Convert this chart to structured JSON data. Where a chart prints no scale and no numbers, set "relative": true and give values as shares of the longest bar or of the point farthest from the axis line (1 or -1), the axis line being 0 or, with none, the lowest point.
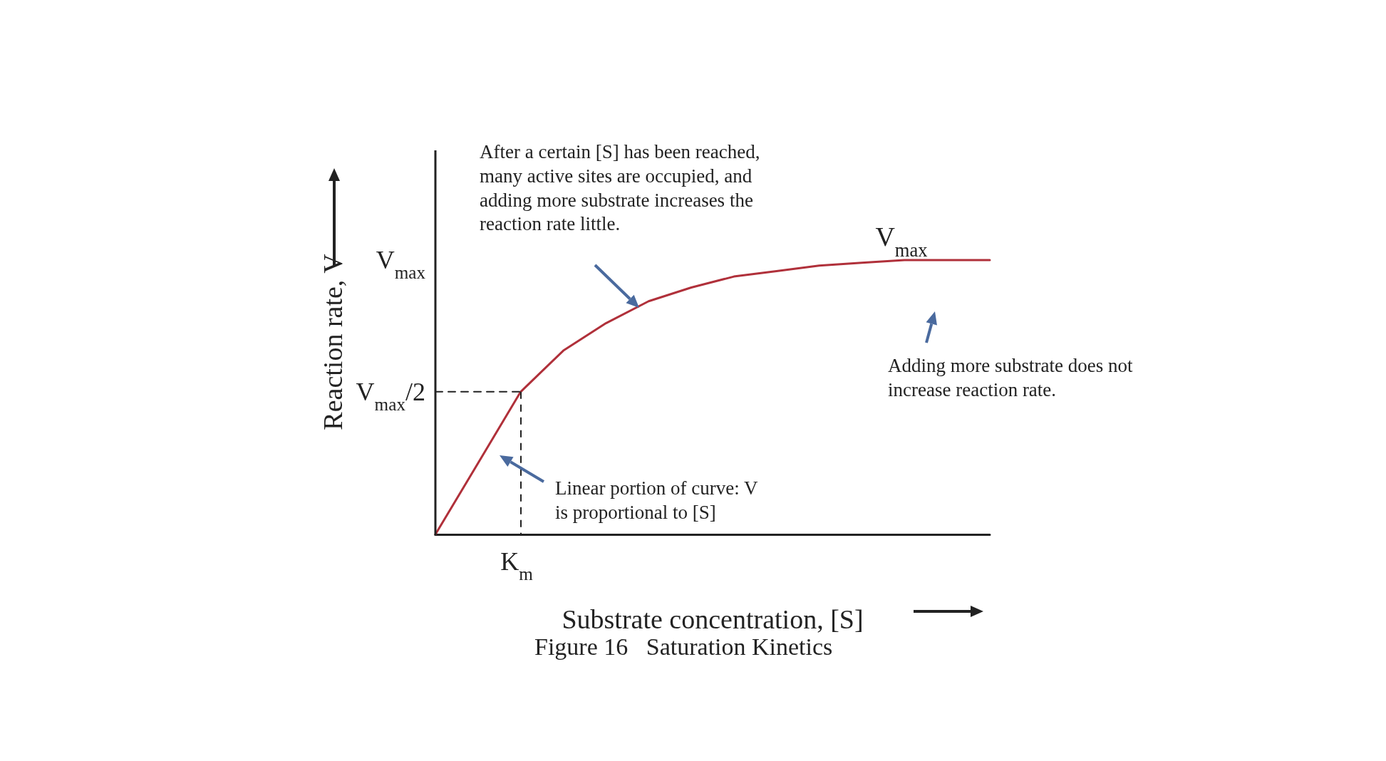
{
  "chart_data": {
    "type": "line",
    "relative": true,
    "title": "Figure 16   Saturation Kinetics",
    "xlabel": "Substrate concentration, [S]",
    "ylabel": "Reaction rate, V",
    "categories": [
      null,
      null,
      null,
      null,
      null,
      null,
      null,
      null,
      null,
      null,
      null,
      null,
      null,
      null
    ],
    "series": [
      {
        "color": "#b0303a",
        "values": [
          0,
          0.26,
          0.52,
          0.67,
          0.77,
          0.85,
          0.9,
          0.94,
          0.96,
          0.98,
          0.99,
          1,
          1,
          1
        ]
      },
      {
        "color": "#222222",
        "line_style": "dashed",
        "values": [
          0.52,
          0.52,
          0.52,
          null,
          null,
          null,
          null,
          null,
          null,
          null,
          null,
          null,
          null,
          null
        ]
      }
    ],
    "annotations": [
      "After a certain [S] has been reached, many active sites are occupied, and adding more substrate increases the reaction rate little.",
      "Adding more substrate does not increase reaction rate.",
      "Linear portion of curve: V is proportional to [S]",
      "V$_{max}$",
      "V$_{max}$",
      "V$_{max}$/2",
      "K$_{m}$"
    ],
    "grid": false,
    "marker": "none",
    "line_style": "solid"
  }
}
